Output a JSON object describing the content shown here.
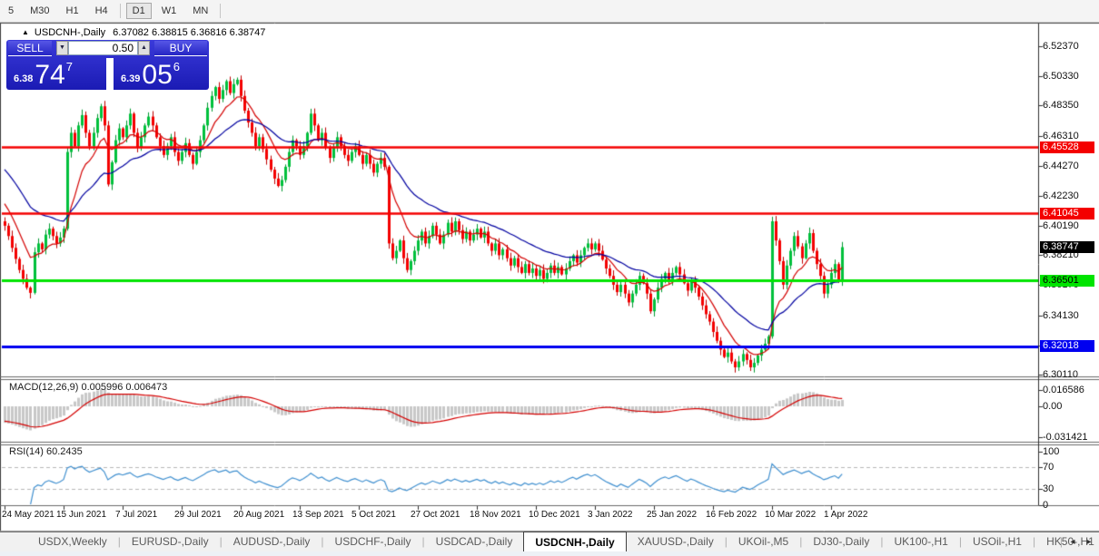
{
  "toolbar": {
    "timeframes": [
      {
        "label": "5",
        "active": false
      },
      {
        "label": "M30",
        "active": false
      },
      {
        "label": "H1",
        "active": false
      },
      {
        "label": "H4",
        "active": false
      },
      {
        "label": "D1",
        "active": true
      },
      {
        "label": "W1",
        "active": false
      },
      {
        "label": "MN",
        "active": false
      }
    ],
    "separators_after": [
      3,
      6
    ]
  },
  "window": {
    "collapse_icon": "▲",
    "title_symbol": "USDCNH-,Daily",
    "title_ohlc": "6.37082 6.38815 6.36816 6.38747",
    "trade": {
      "sell_label": "SELL",
      "buy_label": "BUY",
      "volume": "0.50",
      "spin_down_icon": "▼",
      "spin_up_icon": "▲",
      "bid_small": "6.38",
      "bid_big": "74",
      "bid_sup": "7",
      "ask_small": "6.39",
      "ask_big": "05",
      "ask_sup": "6"
    }
  },
  "price_axis": {
    "ticks": [
      "6.52370",
      "6.50330",
      "6.48350",
      "6.46310",
      "6.44270",
      "6.42230",
      "6.40190",
      "6.38210",
      "6.36170",
      "6.34130",
      "6.32090",
      "6.30110"
    ],
    "badges": [
      {
        "text": "6.45528",
        "price": 6.45528,
        "bg": "#f40000",
        "fg": "#ffffff"
      },
      {
        "text": "6.41045",
        "price": 6.41045,
        "bg": "#f40000",
        "fg": "#ffffff"
      },
      {
        "text": "6.38747",
        "price": 6.38747,
        "bg": "#000000",
        "fg": "#ffffff"
      },
      {
        "text": "6.36501",
        "price": 6.36501,
        "bg": "#00e400",
        "fg": "#000000"
      },
      {
        "text": "6.32018",
        "price": 6.32018,
        "bg": "#0000f0",
        "fg": "#ffffff"
      }
    ]
  },
  "chart_data": {
    "type": "candlestick",
    "symbol": "USDCNH-",
    "timeframe": "Daily",
    "visible_price_range": [
      6.3011,
      6.5237
    ],
    "x_tick_dates": [
      "24 May 2021",
      "15 Jun 2021",
      "7 Jul 2021",
      "29 Jul 2021",
      "20 Aug 2021",
      "13 Sep 2021",
      "5 Oct 2021",
      "27 Oct 2021",
      "18 Nov 2021",
      "10 Dec 2021",
      "3 Jan 2022",
      "25 Jan 2022",
      "16 Feb 2022",
      "10 Mar 2022",
      "1 Apr 2022"
    ],
    "levels": [
      {
        "price": 6.45528,
        "color": "#f40000",
        "width": 2.5
      },
      {
        "price": 6.41045,
        "color": "#f40000",
        "width": 2.5
      },
      {
        "price": 6.36501,
        "color": "#00e400",
        "width": 3
      },
      {
        "price": 6.32018,
        "color": "#0000f0",
        "width": 3
      }
    ],
    "last_close": 6.38747,
    "pre_window_closes": [
      6.49,
      6.488,
      6.485,
      6.482,
      6.478,
      6.475,
      6.472,
      6.47,
      6.468,
      6.465,
      6.462,
      6.458,
      6.455,
      6.452,
      6.45,
      6.448,
      6.445,
      6.442,
      6.438,
      6.435,
      6.432,
      6.43,
      6.428,
      6.425,
      6.422,
      6.42,
      6.418,
      6.415,
      6.41,
      6.405
    ],
    "closes": [
      6.402,
      6.395,
      6.387,
      6.3795,
      6.372,
      6.366,
      6.36,
      6.3565,
      6.384,
      6.39,
      6.386,
      6.396,
      6.4,
      6.395,
      6.39,
      6.394,
      6.4,
      6.452,
      6.465,
      6.456,
      6.47,
      6.477,
      6.465,
      6.456,
      6.465,
      6.475,
      6.483,
      6.47,
      6.43,
      6.445,
      6.46,
      6.468,
      6.462,
      6.47,
      6.478,
      6.465,
      6.455,
      6.462,
      6.47,
      6.476,
      6.47,
      6.462,
      6.456,
      6.45,
      6.456,
      6.462,
      6.452,
      6.446,
      6.452,
      6.458,
      6.45,
      6.444,
      6.452,
      6.46,
      6.47,
      6.482,
      6.49,
      6.496,
      6.488,
      6.494,
      6.5,
      6.492,
      6.498,
      6.501,
      6.49,
      6.48,
      6.472,
      6.465,
      6.456,
      6.462,
      6.454,
      6.447,
      6.44,
      6.434,
      6.429,
      6.433,
      6.442,
      6.452,
      6.46,
      6.456,
      6.45,
      6.456,
      6.465,
      6.478,
      6.47,
      6.46,
      6.465,
      6.455,
      6.448,
      6.455,
      6.462,
      6.456,
      6.45,
      6.446,
      6.452,
      6.456,
      6.45,
      6.444,
      6.45,
      6.444,
      6.438,
      6.444,
      6.448,
      6.442,
      6.39,
      6.38,
      6.385,
      6.392,
      6.38,
      6.372,
      6.378,
      6.385,
      6.392,
      6.398,
      6.39,
      6.395,
      6.402,
      6.396,
      6.39,
      6.396,
      6.404,
      6.398,
      6.405,
      6.399,
      6.393,
      6.398,
      6.392,
      6.396,
      6.4,
      6.394,
      6.398,
      6.39,
      6.385,
      6.39,
      6.382,
      6.386,
      6.38,
      6.375,
      6.38,
      6.374,
      6.37,
      6.376,
      6.37,
      6.373,
      6.368,
      6.372,
      6.366,
      6.37,
      6.375,
      6.37,
      6.374,
      6.369,
      6.373,
      6.378,
      6.382,
      6.377,
      6.382,
      6.387,
      6.39,
      6.386,
      6.39,
      6.385,
      6.379,
      6.373,
      6.368,
      6.362,
      6.357,
      6.362,
      6.356,
      6.35,
      6.356,
      6.362,
      6.368,
      6.363,
      6.356,
      6.344,
      6.352,
      6.36,
      6.366,
      6.37,
      6.365,
      6.37,
      6.374,
      6.369,
      6.363,
      6.358,
      6.364,
      6.36,
      6.354,
      6.348,
      6.342,
      6.337,
      6.33,
      6.324,
      6.318,
      6.313,
      6.316,
      6.31,
      6.306,
      6.31,
      6.315,
      6.311,
      6.306,
      6.309,
      6.314,
      6.318,
      6.322,
      6.327,
      6.405,
      6.392,
      6.378,
      6.362,
      6.375,
      6.385,
      6.395,
      6.388,
      6.38,
      6.39,
      6.397,
      6.385,
      6.376,
      6.368,
      6.356,
      6.362,
      6.37,
      6.376,
      6.365,
      6.38747
    ],
    "ma_fast_period": 10,
    "ma_slow_period": 30,
    "macd": {
      "label": "MACD(12,26,9) 0.005996 0.006473",
      "params": [
        12,
        26,
        9
      ],
      "current_macd": 0.005996,
      "current_signal": 0.006473,
      "axis_ticks": [
        "0.016586",
        "0.00",
        "-0.031421"
      ]
    },
    "rsi": {
      "label": "RSI(14) 60.2435",
      "period": 14,
      "current": 60.2435,
      "axis_ticks": [
        "100",
        "70",
        "30",
        "0"
      ],
      "level_lines": [
        70,
        30
      ]
    }
  },
  "tabs": {
    "items": [
      "USDX,Weekly",
      "EURUSD-,Daily",
      "AUDUSD-,Daily",
      "USDCHF-,Daily",
      "USDCAD-,Daily",
      "USDCNH-,Daily",
      "XAUUSD-,Daily",
      "UKOil-,M5",
      "DJ30-,Daily",
      "UK100-,H1",
      "USOil-,H1",
      "HK50-,H1"
    ],
    "active": "USDCNH-,Daily",
    "scroll_left_icon": "◂",
    "scroll_right_icon": "▸"
  },
  "colors": {
    "candle_up": "#00c03c",
    "candle_up_stroke": "#009a2f",
    "candle_down": "#f40000",
    "candle_down_stroke": "#c00000",
    "ma_fast": "#d40000",
    "ma_slow": "#0000a0",
    "macd_hist": "#c8c8c8",
    "macd_signal": "#d40000",
    "rsi_line": "#4090d0",
    "dashed_level": "#b8b8b8",
    "panel_blue": "#2525c4"
  }
}
